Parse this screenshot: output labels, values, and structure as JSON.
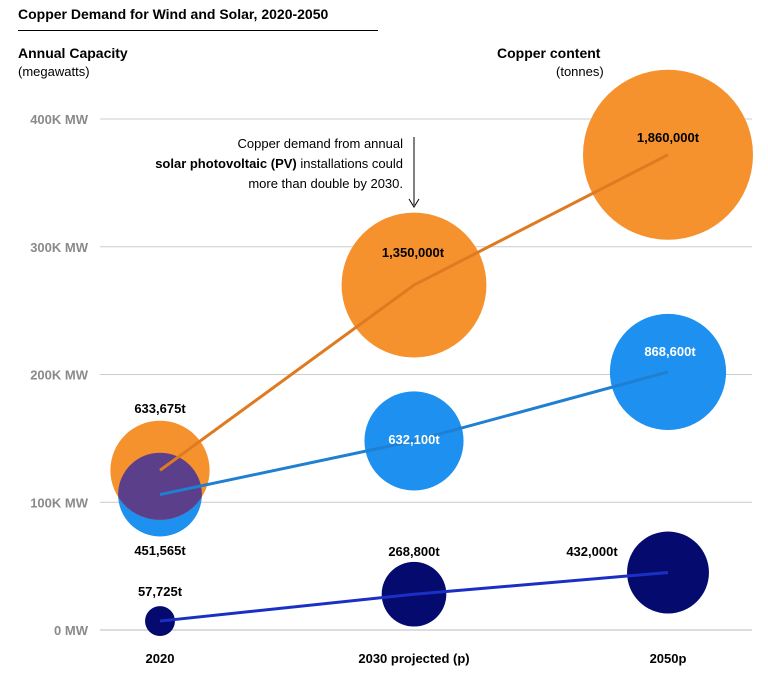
{
  "chart_data": {
    "type": "scatter",
    "subtype": "bubble-line",
    "title": "Copper Demand for Wind and Solar, 2020-2050",
    "ylabel": "Annual Capacity",
    "ylabel_unit": "(megawatts)",
    "size_label": "Copper content",
    "size_unit": "(tonnes)",
    "categories": [
      "2020",
      "2030 projected (p)",
      "2050p"
    ],
    "y_ticks": [
      "0 MW",
      "100K MW",
      "200K MW",
      "300K MW",
      "400K MW"
    ],
    "ylim": [
      0,
      400000
    ],
    "grid": true,
    "series": [
      {
        "color": "#f5922e",
        "line_color": "#e07a20",
        "values": [
          125000,
          270000,
          372000
        ],
        "copper_tonnes": [
          633675,
          1350000,
          1860000
        ],
        "labels": [
          "633,675t",
          "1,350,000t",
          "1,860,000t"
        ]
      },
      {
        "color": "#1e90f0",
        "line_color": "#1f7fd0",
        "values": [
          106000,
          148000,
          202000
        ],
        "copper_tonnes": [
          451565,
          632100,
          868600
        ],
        "labels": [
          "451,565t",
          "632,100t",
          "868,600t"
        ]
      },
      {
        "color": "#050a6e",
        "line_color": "#1c2fc4",
        "values": [
          7000,
          28000,
          45000
        ],
        "copper_tonnes": [
          57725,
          268800,
          432000
        ],
        "labels": [
          "57,725t",
          "268,800t",
          "432,000t"
        ]
      }
    ],
    "overlap_color": "#5b3f8a",
    "annotation": {
      "line1": "Copper demand from annual",
      "line2_bold": "solar photovoltaic (PV)",
      "line2_rest": " installations could",
      "line3": "more than double by 2030."
    }
  }
}
